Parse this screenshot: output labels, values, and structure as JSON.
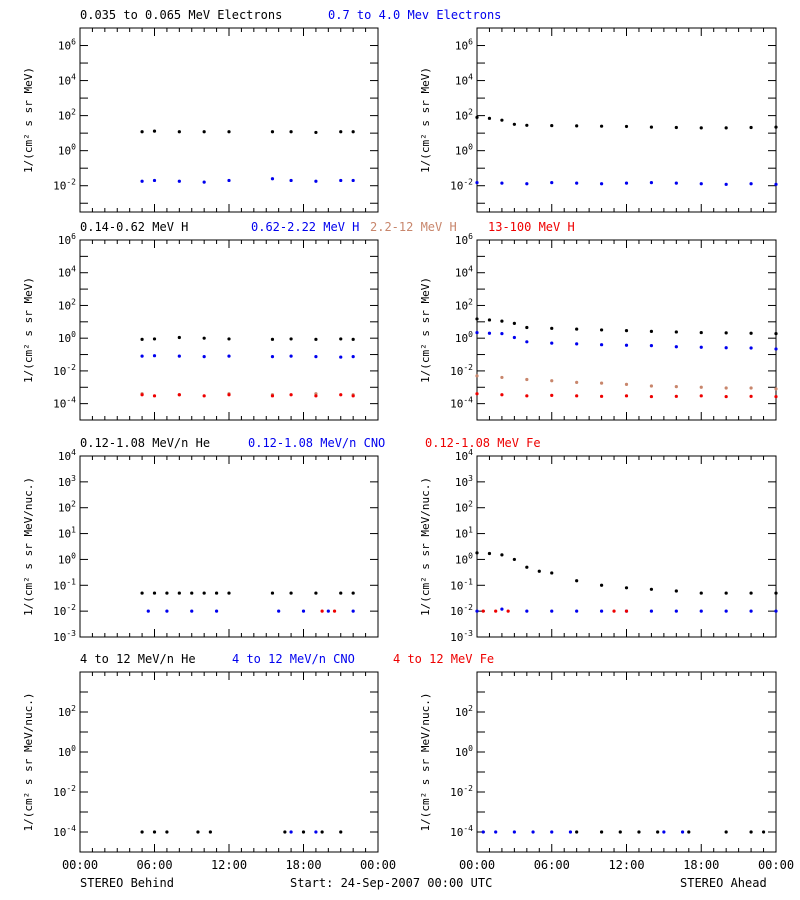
{
  "colors": {
    "black": "#000000",
    "blue": "#0000ee",
    "tan": "#c8866c",
    "red": "#ee0000",
    "purple": "#9900aa"
  },
  "footer": {
    "left": "STEREO Behind",
    "center": "Start: 24-Sep-2007 00:00 UTC",
    "right": "STEREO Ahead"
  },
  "x_axis": {
    "ticks": [
      0,
      6,
      12,
      18,
      24
    ],
    "tick_labels": [
      "00:00",
      "06:00",
      "12:00",
      "18:00",
      "00:00"
    ],
    "unit": "hours"
  },
  "rows": [
    {
      "titles": [
        {
          "text": "0.035 to 0.065 MeV Electrons",
          "color": "black"
        },
        {
          "text": "0.7 to 4.0 Mev Electrons",
          "color": "blue"
        }
      ],
      "ylabel": "1/(cm² s sr MeV)",
      "ylim_log10": [
        -3.5,
        7
      ],
      "yticks": [
        {
          "p": 6,
          "base": "10",
          "exp": "6"
        },
        {
          "p": 4,
          "base": "10",
          "exp": "4"
        },
        {
          "p": 2,
          "base": "10",
          "exp": "2"
        },
        {
          "p": 0,
          "base": "10",
          "exp": "0"
        },
        {
          "p": -2,
          "base": "10",
          "exp": "-2"
        }
      ]
    },
    {
      "titles": [
        {
          "text": "0.14-0.62 MeV H",
          "color": "black"
        },
        {
          "text": "0.62-2.22 MeV H",
          "color": "blue"
        },
        {
          "text": "2.2-12 MeV H",
          "color": "tan"
        },
        {
          "text": "13-100 MeV H",
          "color": "red"
        }
      ],
      "ylabel": "1/(cm² s sr MeV)",
      "ylim_log10": [
        -5,
        6
      ],
      "yticks": [
        {
          "p": 6,
          "base": "10",
          "exp": "6"
        },
        {
          "p": 4,
          "base": "10",
          "exp": "4"
        },
        {
          "p": 2,
          "base": "10",
          "exp": "2"
        },
        {
          "p": 0,
          "base": "10",
          "exp": "0"
        },
        {
          "p": -2,
          "base": "10",
          "exp": "-2"
        },
        {
          "p": -4,
          "base": "10",
          "exp": "-4"
        }
      ]
    },
    {
      "titles": [
        {
          "text": "0.12-1.08 MeV/n He",
          "color": "black"
        },
        {
          "text": "0.12-1.08 MeV/n CNO",
          "color": "blue"
        },
        {
          "text": "0.12-1.08 MeV Fe",
          "color": "red"
        }
      ],
      "ylabel": "1/(cm² s sr MeV/nuc.)",
      "ylim_log10": [
        -3,
        4
      ],
      "yticks": [
        {
          "p": 4,
          "base": "10",
          "exp": "4"
        },
        {
          "p": 3,
          "base": "10",
          "exp": "3"
        },
        {
          "p": 2,
          "base": "10",
          "exp": "2"
        },
        {
          "p": 1,
          "base": "10",
          "exp": "1"
        },
        {
          "p": 0,
          "base": "10",
          "exp": "0"
        },
        {
          "p": -1,
          "base": "10",
          "exp": "-1"
        },
        {
          "p": -2,
          "base": "10",
          "exp": "-2"
        },
        {
          "p": -3,
          "base": "10",
          "exp": "-3"
        }
      ]
    },
    {
      "titles": [
        {
          "text": "4 to 12 MeV/n He",
          "color": "black"
        },
        {
          "text": "4 to 12 MeV/n CNO",
          "color": "blue"
        },
        {
          "text": "4 to 12 MeV Fe",
          "color": "red"
        }
      ],
      "ylabel": "1/(cm² s sr MeV/nuc.)",
      "ylim_log10": [
        -5,
        4
      ],
      "yticks": [
        {
          "p": 2,
          "base": "10",
          "exp": "2"
        },
        {
          "p": 0,
          "base": "10",
          "exp": "0"
        },
        {
          "p": -2,
          "base": "10",
          "exp": "-2"
        },
        {
          "p": -4,
          "base": "10",
          "exp": "-4"
        }
      ]
    }
  ],
  "chart_data": [
    {
      "panel": "Behind, electrons",
      "type": "scatter",
      "y_scale": "log",
      "xlim": [
        0,
        24
      ],
      "ylim": [
        0.000316,
        10000000
      ],
      "series": [
        {
          "name": "0.035 to 0.065 MeV Electrons",
          "color": "black",
          "x": [
            5,
            6,
            8,
            10,
            12,
            15.5,
            17,
            19,
            21,
            22
          ],
          "y": [
            12,
            13,
            12,
            12,
            12,
            12,
            12,
            11,
            12,
            12
          ]
        },
        {
          "name": "0.7 to 4.0 Mev Electrons",
          "color": "blue",
          "x": [
            5,
            6,
            8,
            10,
            12,
            15.5,
            17,
            19,
            21,
            22
          ],
          "y": [
            0.018,
            0.02,
            0.018,
            0.016,
            0.02,
            0.025,
            0.02,
            0.018,
            0.02,
            0.02
          ]
        }
      ]
    },
    {
      "panel": "Ahead, electrons",
      "type": "scatter",
      "y_scale": "log",
      "xlim": [
        0,
        24
      ],
      "ylim": [
        0.000316,
        10000000
      ],
      "series": [
        {
          "name": "0.035 to 0.065 MeV Electrons",
          "color": "black",
          "x": [
            0,
            1,
            2,
            3,
            4,
            6,
            8,
            10,
            12,
            14,
            16,
            18,
            20,
            22,
            24
          ],
          "y": [
            80,
            70,
            55,
            32,
            28,
            27,
            26,
            25,
            24,
            22,
            21,
            20,
            20,
            21,
            22
          ]
        },
        {
          "name": "0.7 to 4.0 Mev Electrons",
          "color": "blue",
          "x": [
            0,
            2,
            4,
            6,
            8,
            10,
            12,
            14,
            16,
            18,
            20,
            22,
            24
          ],
          "y": [
            0.015,
            0.014,
            0.013,
            0.015,
            0.014,
            0.013,
            0.014,
            0.015,
            0.014,
            0.013,
            0.012,
            0.013,
            0.012
          ]
        }
      ]
    },
    {
      "panel": "Behind, protons",
      "type": "scatter",
      "y_scale": "log",
      "xlim": [
        0,
        24
      ],
      "ylim": [
        1e-05,
        1000000
      ],
      "series": [
        {
          "name": "0.14-0.62 MeV H",
          "color": "black",
          "x": [
            5,
            6,
            8,
            10,
            12,
            15.5,
            17,
            19,
            21,
            22
          ],
          "y": [
            0.85,
            0.9,
            1.1,
            1.0,
            0.9,
            0.85,
            0.9,
            0.85,
            0.9,
            0.85
          ]
        },
        {
          "name": "0.62-2.22 MeV H",
          "color": "blue",
          "x": [
            5,
            6,
            8,
            10,
            12,
            15.5,
            17,
            19,
            21,
            22
          ],
          "y": [
            0.08,
            0.085,
            0.08,
            0.075,
            0.08,
            0.075,
            0.08,
            0.075,
            0.07,
            0.075
          ]
        },
        {
          "name": "2.2-12 MeV H",
          "color": "tan",
          "x": [
            5,
            8,
            12,
            15.5,
            19,
            22
          ],
          "y": [
            0.0004,
            0.00035,
            0.0004,
            0.00035,
            0.0004,
            0.00035
          ]
        },
        {
          "name": "13-100 MeV H",
          "color": "red",
          "x": [
            5,
            6,
            8,
            10,
            12,
            15.5,
            17,
            19,
            21,
            22
          ],
          "y": [
            0.00035,
            0.0003,
            0.00035,
            0.0003,
            0.00035,
            0.0003,
            0.00035,
            0.0003,
            0.00035,
            0.0003
          ]
        }
      ]
    },
    {
      "panel": "Ahead, protons",
      "type": "scatter",
      "y_scale": "log",
      "xlim": [
        0,
        24
      ],
      "ylim": [
        1e-05,
        1000000
      ],
      "series": [
        {
          "name": "0.14-0.62 MeV H",
          "color": "black",
          "x": [
            0,
            1,
            2,
            3,
            4,
            6,
            8,
            10,
            12,
            14,
            16,
            18,
            20,
            22,
            24
          ],
          "y": [
            15,
            13,
            11,
            8,
            4.5,
            4,
            3.6,
            3.2,
            2.9,
            2.6,
            2.4,
            2.2,
            2.1,
            2.0,
            1.9
          ]
        },
        {
          "name": "0.62-2.22 MeV H",
          "color": "blue",
          "x": [
            0,
            1,
            2,
            3,
            4,
            6,
            8,
            10,
            12,
            14,
            16,
            18,
            20,
            22,
            24
          ],
          "y": [
            2.2,
            2.0,
            1.9,
            1.1,
            0.6,
            0.5,
            0.45,
            0.4,
            0.37,
            0.35,
            0.3,
            0.28,
            0.26,
            0.25,
            0.22
          ]
        },
        {
          "name": "2.2-12 MeV H",
          "color": "tan",
          "x": [
            0,
            2,
            4,
            6,
            8,
            10,
            12,
            14,
            16,
            18,
            20,
            22,
            24
          ],
          "y": [
            0.005,
            0.004,
            0.003,
            0.0025,
            0.002,
            0.0018,
            0.0015,
            0.0012,
            0.0011,
            0.001,
            0.0009,
            0.0009,
            0.0008
          ]
        },
        {
          "name": "13-100 MeV H",
          "color": "red",
          "x": [
            0,
            2,
            4,
            6,
            8,
            10,
            12,
            14,
            16,
            18,
            20,
            22,
            24
          ],
          "y": [
            0.0004,
            0.00035,
            0.0003,
            0.00032,
            0.0003,
            0.00028,
            0.0003,
            0.00027,
            0.00028,
            0.0003,
            0.00027,
            0.00028,
            0.00027
          ]
        }
      ]
    },
    {
      "panel": "Behind, 0.12-1.08 MeV/n heavy ions",
      "type": "scatter",
      "y_scale": "log",
      "xlim": [
        0,
        24
      ],
      "ylim": [
        0.001,
        10000
      ],
      "series": [
        {
          "name": "0.12-1.08 MeV/n He",
          "color": "black",
          "x": [
            5,
            6,
            7,
            8,
            9,
            10,
            11,
            12,
            15.5,
            17,
            19,
            21,
            22
          ],
          "y": [
            0.05,
            0.05,
            0.05,
            0.05,
            0.05,
            0.05,
            0.05,
            0.05,
            0.05,
            0.05,
            0.05,
            0.05,
            0.05
          ]
        },
        {
          "name": "0.12-1.08 MeV/n CNO",
          "color": "blue",
          "x": [
            5.5,
            7,
            9,
            11,
            16,
            18,
            20,
            22
          ],
          "y": [
            0.01,
            0.01,
            0.01,
            0.01,
            0.01,
            0.01,
            0.01,
            0.01
          ]
        },
        {
          "name": "0.12-1.08 MeV Fe",
          "color": "red",
          "x": [
            19.5,
            20.5
          ],
          "y": [
            0.01,
            0.01
          ]
        }
      ]
    },
    {
      "panel": "Ahead, 0.12-1.08 MeV/n heavy ions",
      "type": "scatter",
      "y_scale": "log",
      "xlim": [
        0,
        24
      ],
      "ylim": [
        0.001,
        10000
      ],
      "series": [
        {
          "name": "0.12-1.08 MeV/n He",
          "color": "black",
          "x": [
            0,
            1,
            2,
            3,
            4,
            5,
            6,
            8,
            10,
            12,
            14,
            16,
            18,
            20,
            22,
            24
          ],
          "y": [
            1.8,
            1.7,
            1.5,
            1.0,
            0.5,
            0.35,
            0.3,
            0.15,
            0.1,
            0.08,
            0.07,
            0.06,
            0.05,
            0.05,
            0.05,
            0.05
          ]
        },
        {
          "name": "0.12-1.08 MeV/n CNO",
          "color": "blue",
          "x": [
            0,
            2,
            4,
            6,
            8,
            10,
            12,
            14,
            16,
            18,
            20,
            22,
            24
          ],
          "y": [
            0.01,
            0.012,
            0.01,
            0.01,
            0.01,
            0.01,
            0.01,
            0.01,
            0.01,
            0.01,
            0.01,
            0.01,
            0.01
          ]
        },
        {
          "name": "0.12-1.08 MeV Fe",
          "color": "red",
          "x": [
            0.5,
            1.5,
            2.5,
            11,
            12
          ],
          "y": [
            0.01,
            0.01,
            0.01,
            0.01,
            0.01
          ]
        }
      ]
    },
    {
      "panel": "Behind, 4 to 12 MeV/n heavy ions",
      "type": "scatter",
      "y_scale": "log",
      "xlim": [
        0,
        24
      ],
      "ylim": [
        1e-05,
        10000
      ],
      "series": [
        {
          "name": "4 to 12 MeV/n He",
          "color": "black",
          "x": [
            5,
            6,
            7,
            9.5,
            10.5,
            16.5,
            18,
            19.5,
            21
          ],
          "y": [
            0.0001,
            0.0001,
            0.0001,
            0.0001,
            0.0001,
            0.0001,
            0.0001,
            0.0001,
            0.0001
          ]
        },
        {
          "name": "4 to 12 MeV/n CNO",
          "color": "blue",
          "x": [
            17,
            19
          ],
          "y": [
            0.0001,
            0.0001
          ]
        }
      ]
    },
    {
      "panel": "Ahead, 4 to 12 MeV/n heavy ions",
      "type": "scatter",
      "y_scale": "log",
      "xlim": [
        0,
        24
      ],
      "ylim": [
        1e-05,
        10000
      ],
      "series": [
        {
          "name": "4 to 12 MeV/n He",
          "color": "black",
          "x": [
            8,
            10,
            11.5,
            13,
            14.5,
            17,
            20,
            22,
            23
          ],
          "y": [
            0.0001,
            0.0001,
            0.0001,
            0.0001,
            0.0001,
            0.0001,
            0.0001,
            0.0001,
            0.0001
          ]
        },
        {
          "name": "4 to 12 MeV/n CNO",
          "color": "blue",
          "x": [
            0.5,
            1.5,
            3,
            4.5,
            6,
            7.5,
            15,
            16.5
          ],
          "y": [
            0.0001,
            0.0001,
            0.0001,
            0.0001,
            0.0001,
            0.0001,
            0.0001,
            0.0001
          ]
        }
      ]
    }
  ]
}
